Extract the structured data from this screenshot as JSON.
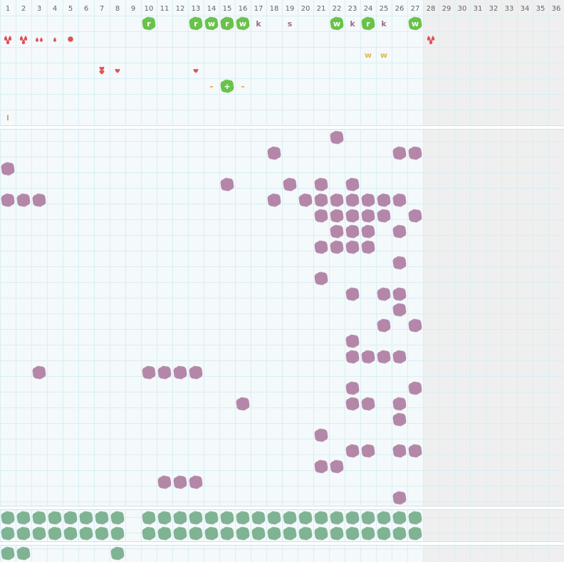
{
  "grid": {
    "columns": 36,
    "active_columns": 27,
    "column_labels": [
      "1",
      "2",
      "3",
      "4",
      "5",
      "6",
      "7",
      "8",
      "9",
      "10",
      "11",
      "12",
      "13",
      "14",
      "15",
      "16",
      "17",
      "18",
      "19",
      "20",
      "21",
      "22",
      "23",
      "24",
      "25",
      "26",
      "27",
      "28",
      "29",
      "30",
      "31",
      "32",
      "33",
      "34",
      "35",
      "36"
    ]
  },
  "colors": {
    "background": "#f4f9fb",
    "inactive_area": "#efefef",
    "grid_line": "#d9eef3",
    "separator": "#ffffff",
    "green_tile": "#69c24a",
    "green_tile_text": "#ffffff",
    "letter": "#a06a8c",
    "yellow_letter": "#e5b84a",
    "red": "#e0525a",
    "orange": "#f08a3a",
    "purple_tile": "#b487a8",
    "teal_tile": "#7fb394"
  },
  "top_tokens": [
    {
      "row": 1,
      "col": 10,
      "kind": "green_tile",
      "label": "r"
    },
    {
      "row": 1,
      "col": 13,
      "kind": "green_tile",
      "label": "r"
    },
    {
      "row": 1,
      "col": 14,
      "kind": "green_tile",
      "label": "w"
    },
    {
      "row": 1,
      "col": 15,
      "kind": "green_tile",
      "label": "r"
    },
    {
      "row": 1,
      "col": 16,
      "kind": "green_tile",
      "label": "w"
    },
    {
      "row": 1,
      "col": 17,
      "kind": "letter",
      "label": "k"
    },
    {
      "row": 1,
      "col": 19,
      "kind": "letter",
      "label": "s"
    },
    {
      "row": 1,
      "col": 22,
      "kind": "green_tile",
      "label": "w"
    },
    {
      "row": 1,
      "col": 23,
      "kind": "letter",
      "label": "k"
    },
    {
      "row": 1,
      "col": 24,
      "kind": "green_tile",
      "label": "r"
    },
    {
      "row": 1,
      "col": 25,
      "kind": "letter",
      "label": "k"
    },
    {
      "row": 1,
      "col": 27,
      "kind": "green_tile",
      "label": "w"
    },
    {
      "row": 2,
      "col": 1,
      "kind": "drops",
      "count": 3
    },
    {
      "row": 2,
      "col": 2,
      "kind": "drops",
      "count": 3
    },
    {
      "row": 2,
      "col": 3,
      "kind": "drops",
      "count": 2
    },
    {
      "row": 2,
      "col": 4,
      "kind": "drops",
      "count": 1
    },
    {
      "row": 2,
      "col": 5,
      "kind": "dot"
    },
    {
      "row": 2,
      "col": 28,
      "kind": "drops",
      "count": 3
    },
    {
      "row": 3,
      "col": 24,
      "kind": "yellow_letter",
      "label": "w"
    },
    {
      "row": 3,
      "col": 25,
      "kind": "yellow_letter",
      "label": "w"
    },
    {
      "row": 4,
      "col": 7,
      "kind": "hearts",
      "count": 2
    },
    {
      "row": 4,
      "col": 8,
      "kind": "hearts",
      "count": 1
    },
    {
      "row": 4,
      "col": 13,
      "kind": "hearts",
      "count": 1
    },
    {
      "row": 5,
      "col": 14,
      "kind": "dash",
      "label": "–"
    },
    {
      "row": 5,
      "col": 15,
      "kind": "green_tile",
      "label": "+"
    },
    {
      "row": 5,
      "col": 16,
      "kind": "dash",
      "label": "–"
    },
    {
      "row": 7,
      "col": 1,
      "kind": "bar",
      "label": "l"
    }
  ],
  "purple_tiles": [
    [
      1,
      22
    ],
    [
      2,
      18
    ],
    [
      2,
      26
    ],
    [
      2,
      27
    ],
    [
      3,
      1
    ],
    [
      4,
      15
    ],
    [
      4,
      19
    ],
    [
      4,
      21
    ],
    [
      4,
      23
    ],
    [
      5,
      1
    ],
    [
      5,
      2
    ],
    [
      5,
      3
    ],
    [
      5,
      18
    ],
    [
      5,
      20
    ],
    [
      5,
      21
    ],
    [
      5,
      22
    ],
    [
      5,
      23
    ],
    [
      5,
      24
    ],
    [
      5,
      25
    ],
    [
      5,
      26
    ],
    [
      6,
      21
    ],
    [
      6,
      22
    ],
    [
      6,
      23
    ],
    [
      6,
      24
    ],
    [
      6,
      25
    ],
    [
      6,
      27
    ],
    [
      7,
      22
    ],
    [
      7,
      23
    ],
    [
      7,
      24
    ],
    [
      7,
      26
    ],
    [
      8,
      21
    ],
    [
      8,
      22
    ],
    [
      8,
      23
    ],
    [
      8,
      24
    ],
    [
      9,
      26
    ],
    [
      10,
      21
    ],
    [
      11,
      23
    ],
    [
      11,
      25
    ],
    [
      11,
      26
    ],
    [
      12,
      26
    ],
    [
      13,
      25
    ],
    [
      13,
      27
    ],
    [
      14,
      23
    ],
    [
      15,
      23
    ],
    [
      15,
      24
    ],
    [
      15,
      25
    ],
    [
      15,
      26
    ],
    [
      16,
      3
    ],
    [
      16,
      10
    ],
    [
      16,
      11
    ],
    [
      16,
      12
    ],
    [
      16,
      13
    ],
    [
      17,
      23
    ],
    [
      17,
      27
    ],
    [
      18,
      16
    ],
    [
      18,
      23
    ],
    [
      18,
      24
    ],
    [
      18,
      26
    ],
    [
      19,
      26
    ],
    [
      20,
      21
    ],
    [
      21,
      23
    ],
    [
      21,
      24
    ],
    [
      21,
      26
    ],
    [
      21,
      27
    ],
    [
      22,
      21
    ],
    [
      22,
      22
    ],
    [
      23,
      11
    ],
    [
      23,
      12
    ],
    [
      23,
      13
    ],
    [
      24,
      26
    ]
  ],
  "teal_rows": {
    "row1_cols": [
      1,
      2,
      3,
      4,
      5,
      6,
      7,
      8,
      10,
      11,
      12,
      13,
      14,
      15,
      16,
      17,
      18,
      19,
      20,
      21,
      22,
      23,
      24,
      25,
      26,
      27
    ],
    "row2_cols": [
      1,
      2,
      3,
      4,
      5,
      6,
      7,
      8,
      10,
      11,
      12,
      13,
      14,
      15,
      16,
      17,
      18,
      19,
      20,
      21,
      22,
      23,
      24,
      25,
      26,
      27
    ],
    "row3_cols": [
      1,
      2,
      8
    ]
  }
}
